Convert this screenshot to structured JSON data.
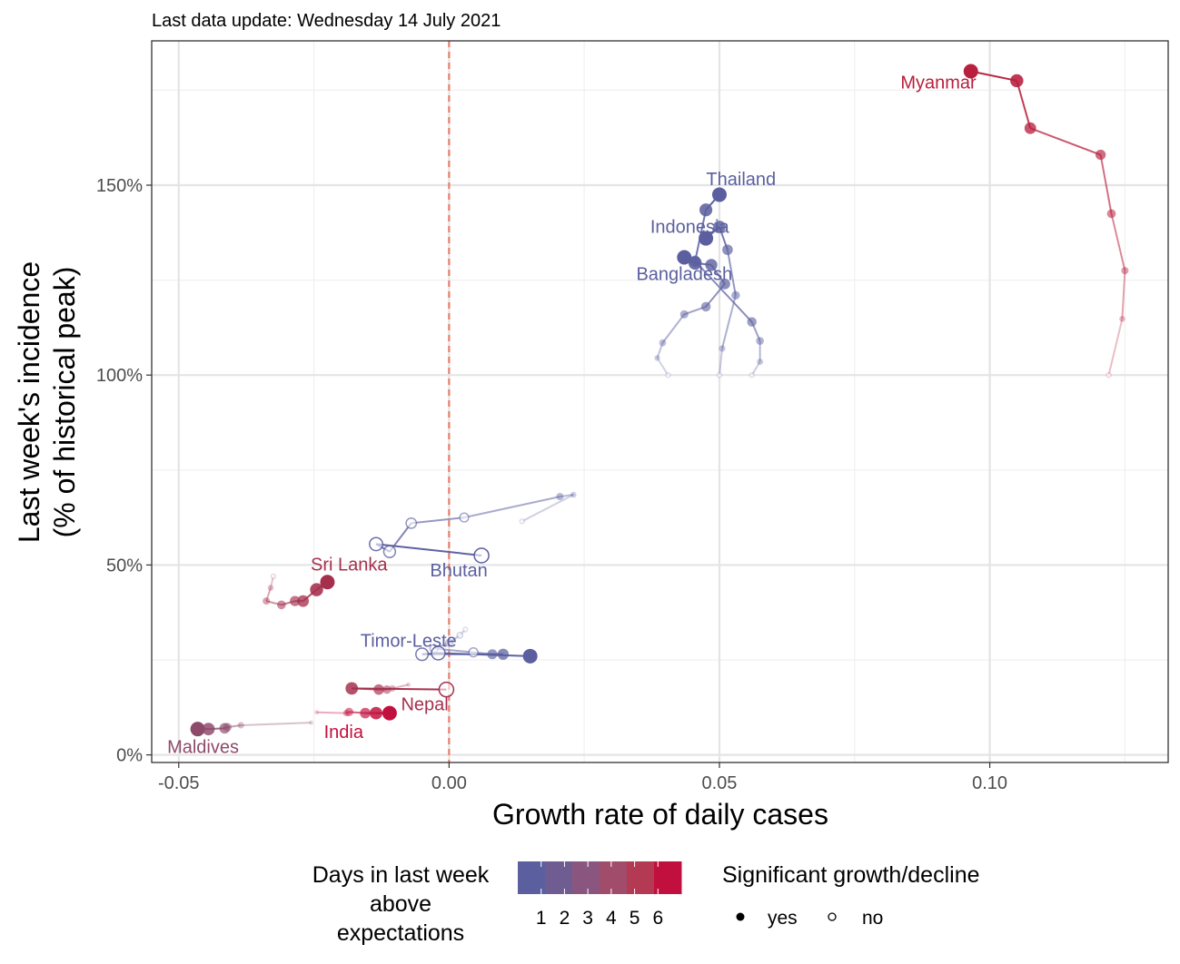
{
  "chart_data": {
    "type": "scatter",
    "subtitle": "Last data update: Wednesday 14 July 2021",
    "xlabel": "Growth rate of daily cases",
    "ylabel_line1": "Last week's incidence",
    "ylabel_line2": "(% of historical peak)",
    "xlim": [
      -0.055,
      0.133
    ],
    "ylim": [
      -0.02,
      1.88
    ],
    "x_ticks": [
      {
        "value": -0.05,
        "label": "-0.05"
      },
      {
        "value": 0.0,
        "label": "0.00"
      },
      {
        "value": 0.05,
        "label": "0.05"
      },
      {
        "value": 0.1,
        "label": "0.10"
      }
    ],
    "y_ticks": [
      {
        "value": 0.0,
        "label": "0%"
      },
      {
        "value": 0.5,
        "label": "50%"
      },
      {
        "value": 1.0,
        "label": "100%"
      },
      {
        "value": 1.5,
        "label": "150%"
      }
    ],
    "reference_line_x": 0.0,
    "grid": true,
    "legend_position": "bottom",
    "color_legend": {
      "title_lines": [
        "Days in last week",
        "above",
        "expectations"
      ],
      "labels": [
        "1",
        "2",
        "3",
        "4",
        "5",
        "6"
      ],
      "colors": [
        "#5b5f9f",
        "#6f5d92",
        "#8a5680",
        "#a24c6b",
        "#b33a52",
        "#c2103e"
      ]
    },
    "shape_legend": {
      "title": "Significant growth/decline",
      "items": [
        {
          "label": "yes",
          "filled": true
        },
        {
          "label": "no",
          "filled": false
        }
      ]
    },
    "series": [
      {
        "name": "Myanmar",
        "color": "#b8203e",
        "label": "Myanmar",
        "label_pos": [
          0.0905,
          1.755
        ],
        "points": [
          [
            0.122,
            1.0,
            false
          ],
          [
            0.1245,
            1.148,
            true
          ],
          [
            0.125,
            1.275,
            true
          ],
          [
            0.1225,
            1.425,
            true
          ],
          [
            0.1205,
            1.58,
            true
          ],
          [
            0.1075,
            1.65,
            true
          ],
          [
            0.105,
            1.775,
            true
          ],
          [
            0.0965,
            1.8,
            true
          ]
        ]
      },
      {
        "name": "Thailand",
        "color": "#5b5f9f",
        "label": "Thailand",
        "label_pos": [
          0.054,
          1.5
        ],
        "points": [
          [
            0.056,
            1.0,
            false
          ],
          [
            0.0575,
            1.035,
            true
          ],
          [
            0.0575,
            1.09,
            true
          ],
          [
            0.056,
            1.14,
            true
          ],
          [
            0.0455,
            1.3,
            true
          ],
          [
            0.0475,
            1.435,
            true
          ],
          [
            0.05,
            1.475,
            true
          ]
        ]
      },
      {
        "name": "Indonesia",
        "color": "#5b5f9f",
        "label": "Indonesia",
        "label_pos": [
          0.0445,
          1.375
        ],
        "points": [
          [
            0.05,
            1.0,
            false
          ],
          [
            0.0505,
            1.07,
            true
          ],
          [
            0.053,
            1.21,
            true
          ],
          [
            0.0515,
            1.33,
            true
          ],
          [
            0.05,
            1.39,
            true
          ],
          [
            0.0475,
            1.36,
            true
          ]
        ]
      },
      {
        "name": "Bangladesh",
        "color": "#5b5f9f",
        "label": "Bangladesh",
        "label_pos": [
          0.0435,
          1.25
        ],
        "points": [
          [
            0.0405,
            1.0,
            false
          ],
          [
            0.0385,
            1.045,
            true
          ],
          [
            0.0395,
            1.085,
            true
          ],
          [
            0.0435,
            1.16,
            true
          ],
          [
            0.0475,
            1.18,
            true
          ],
          [
            0.051,
            1.24,
            true
          ],
          [
            0.0485,
            1.29,
            true
          ],
          [
            0.0455,
            1.295,
            true
          ],
          [
            0.0435,
            1.31,
            true
          ]
        ]
      },
      {
        "name": "Bhutan",
        "color": "#5b5f9f",
        "label": "Bhutan",
        "label_pos": [
          0.0018,
          0.47
        ],
        "points": [
          [
            0.0135,
            0.615,
            false
          ],
          [
            0.023,
            0.685,
            true
          ],
          [
            0.0205,
            0.68,
            true
          ],
          [
            0.0028,
            0.625,
            false
          ],
          [
            -0.007,
            0.61,
            false
          ],
          [
            -0.011,
            0.535,
            false
          ],
          [
            -0.0135,
            0.555,
            false
          ],
          [
            0.006,
            0.525,
            false
          ]
        ]
      },
      {
        "name": "Sri Lanka",
        "color": "#a5304e",
        "label": "Sri Lanka",
        "label_pos": [
          -0.0185,
          0.485
        ],
        "points": [
          [
            -0.0325,
            0.47,
            false
          ],
          [
            -0.033,
            0.44,
            true
          ],
          [
            -0.0338,
            0.405,
            true
          ],
          [
            -0.031,
            0.395,
            true
          ],
          [
            -0.0285,
            0.405,
            true
          ],
          [
            -0.027,
            0.405,
            true
          ],
          [
            -0.0245,
            0.435,
            true
          ],
          [
            -0.0225,
            0.455,
            true
          ]
        ]
      },
      {
        "name": "Timor-Leste",
        "color": "#5b5f9f",
        "label": "Timor-Leste",
        "label_pos": [
          -0.0075,
          0.285
        ],
        "points": [
          [
            0.003,
            0.33,
            false
          ],
          [
            0.002,
            0.315,
            false
          ],
          [
            0.0,
            0.295,
            false
          ],
          [
            -0.0028,
            0.28,
            false
          ],
          [
            0.0045,
            0.27,
            false
          ],
          [
            0.008,
            0.265,
            true
          ],
          [
            0.01,
            0.265,
            true
          ],
          [
            -0.005,
            0.265,
            false
          ],
          [
            -0.002,
            0.268,
            false
          ],
          [
            0.015,
            0.26,
            true
          ]
        ]
      },
      {
        "name": "Nepal",
        "color": "#a5304e",
        "label": "Nepal",
        "label_pos": [
          -0.0045,
          0.118
        ],
        "points": [
          [
            -0.0075,
            0.185,
            true
          ],
          [
            -0.0105,
            0.175,
            true
          ],
          [
            -0.0115,
            0.172,
            true
          ],
          [
            -0.013,
            0.172,
            true
          ],
          [
            -0.018,
            0.175,
            true
          ],
          [
            -0.0005,
            0.172,
            false
          ]
        ]
      },
      {
        "name": "India",
        "color": "#c2103e",
        "label": "India",
        "label_pos": [
          -0.0195,
          0.045
        ],
        "points": [
          [
            -0.0245,
            0.112,
            true
          ],
          [
            -0.019,
            0.11,
            true
          ],
          [
            -0.0185,
            0.113,
            true
          ],
          [
            -0.0155,
            0.11,
            true
          ],
          [
            -0.0135,
            0.11,
            true
          ],
          [
            -0.011,
            0.11,
            true
          ]
        ]
      },
      {
        "name": "Maldives",
        "color": "#8e4a6b",
        "label": "Maldives",
        "label_pos": [
          -0.0455,
          0.005
        ],
        "points": [
          [
            -0.0255,
            0.085,
            true
          ],
          [
            -0.0385,
            0.078,
            true
          ],
          [
            -0.041,
            0.073,
            true
          ],
          [
            -0.0415,
            0.07,
            true
          ],
          [
            -0.0445,
            0.068,
            true
          ],
          [
            -0.0465,
            0.068,
            true
          ]
        ]
      }
    ]
  }
}
